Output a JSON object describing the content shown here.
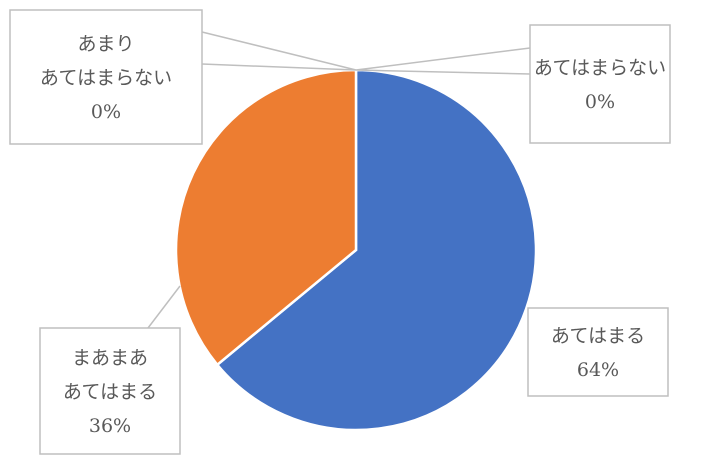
{
  "chart_data": {
    "type": "pie",
    "title": "",
    "slices": [
      {
        "label_lines": [
          "あてはまる"
        ],
        "value_label": "64%",
        "value": 64,
        "color": "#4472C4"
      },
      {
        "label_lines": [
          "まあまあ",
          "あてはまる"
        ],
        "value_label": "36%",
        "value": 36,
        "color": "#ED7D31"
      },
      {
        "label_lines": [
          "あまり",
          "あてはまらない"
        ],
        "value_label": "0%",
        "value": 0,
        "color": "#A5A5A5"
      },
      {
        "label_lines": [
          "あてはまらない"
        ],
        "value_label": "0%",
        "value": 0,
        "color": "#FFC000"
      }
    ],
    "legend": "none",
    "start_angle": "12 o'clock",
    "direction": "clockwise",
    "labels": "callouts with category name and percentage"
  }
}
